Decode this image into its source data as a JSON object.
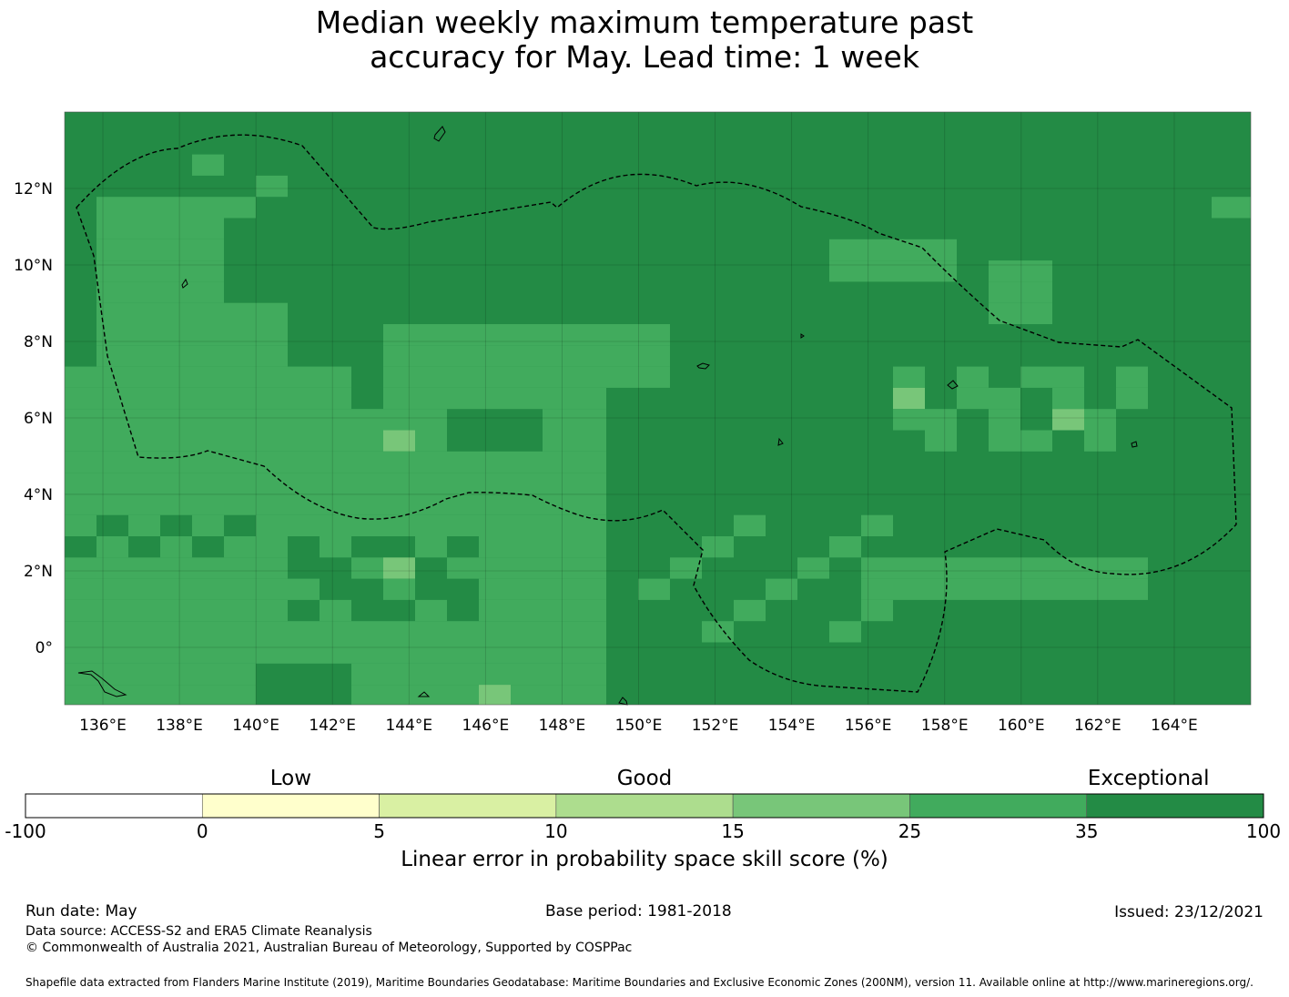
{
  "title": {
    "line1": "Median weekly maximum temperature past",
    "line2": "accuracy for May. Lead time: 1 week"
  },
  "map": {
    "lon_range": [
      135,
      166
    ],
    "lat_range": [
      -1.5,
      14
    ],
    "lon_ticks": [
      "136°E",
      "138°E",
      "140°E",
      "142°E",
      "144°E",
      "146°E",
      "148°E",
      "150°E",
      "152°E",
      "154°E",
      "156°E",
      "158°E",
      "160°E",
      "162°E",
      "164°E"
    ],
    "lat_ticks": [
      "12°N",
      "10°N",
      "8°N",
      "6°N",
      "4°N",
      "2°N",
      "0°"
    ],
    "background_color": "#238b45",
    "cell_size_deg": 0.833
  },
  "colorbar": {
    "categories": [
      "Low",
      "Good",
      "Exceptional"
    ],
    "ticks": [
      "-100",
      "0",
      "5",
      "10",
      "15",
      "25",
      "35",
      "100"
    ],
    "colors": [
      "#ffffff",
      "#ffffcc",
      "#d9f0a3",
      "#addd8e",
      "#78c679",
      "#41ab5d",
      "#238b45"
    ],
    "label": "Linear error in probability space skill score (%)"
  },
  "footer": {
    "run_date": "Run date: May",
    "base_period": "Base period: 1981-2018",
    "issued": "Issued: 23/12/2021",
    "data_source": "Data source: ACCESS-S2 and ERA5 Climate Reanalysis",
    "copyright": "© Commonwealth of Australia 2021, Australian Bureau of Meteorology, Supported by COSPPac",
    "shapefile": "Shapefile data extracted from Flanders Marine Institute (2019), Maritime Boundaries Geodatabase: Maritime Boundaries and Exclusive Economic Zones (200NM), version 11. Available online at http://www.marineregions.org/."
  }
}
